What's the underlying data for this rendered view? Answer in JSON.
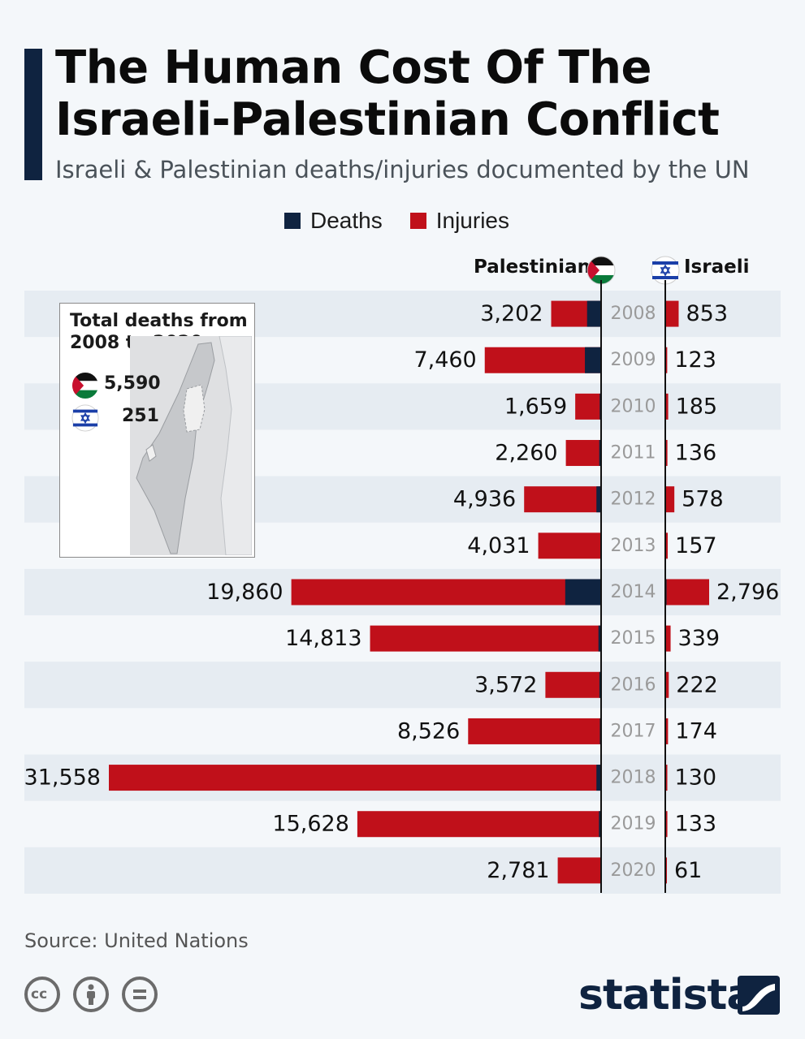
{
  "header": {
    "title_line1": "The Human Cost Of The",
    "title_line2": "Israeli-Palestinian Conflict",
    "subtitle": "Israeli & Palestinian deaths/injuries documented by the UN"
  },
  "legend": {
    "deaths": "Deaths",
    "injuries": "Injuries"
  },
  "columns": {
    "palestinian": "Palestinian",
    "israeli": "Israeli"
  },
  "colors": {
    "deaths": "#0f2340",
    "injuries": "#c0101a",
    "stripe": "#e6ecf2",
    "year_text": "#9a9a9a",
    "navy": "#0f2340"
  },
  "inset": {
    "title_line1": "Total deaths from",
    "title_line2": "2008 to 2020",
    "palestinian_total": "5,590",
    "israeli_total": "251",
    "palestinian_flag_icon": "palestine-flag-icon",
    "israeli_flag_icon": "israel-flag-icon",
    "map_icon": "israel-map-icon"
  },
  "chart_data": {
    "type": "bar",
    "orientation": "horizontal-diverging",
    "categories": [
      "2008",
      "2009",
      "2010",
      "2011",
      "2012",
      "2013",
      "2014",
      "2015",
      "2016",
      "2017",
      "2018",
      "2019",
      "2020"
    ],
    "series": [
      {
        "name": "Palestinian",
        "labels": [
          "3,202",
          "7,460",
          "1,659",
          "2,260",
          "4,936",
          "4,031",
          "19,860",
          "14,813",
          "3,572",
          "8,526",
          "31,558",
          "15,628",
          "2,781"
        ],
        "totals": [
          3202,
          7460,
          1659,
          2260,
          4936,
          4031,
          19860,
          14813,
          3572,
          8526,
          31558,
          15628,
          2781
        ],
        "deaths": [
          900,
          1040,
          90,
          120,
          300,
          50,
          2300,
          170,
          110,
          80,
          300,
          140,
          30
        ]
      },
      {
        "name": "Israeli",
        "labels": [
          "853",
          "123",
          "185",
          "136",
          "578",
          "157",
          "2,796",
          "339",
          "222",
          "174",
          "130",
          "133",
          "61"
        ],
        "totals": [
          853,
          123,
          185,
          136,
          578,
          157,
          2796,
          339,
          222,
          174,
          130,
          133,
          61
        ],
        "deaths": [
          30,
          10,
          10,
          10,
          30,
          5,
          80,
          30,
          15,
          15,
          5,
          10,
          5
        ]
      }
    ]
  },
  "footer": {
    "source": "Source: United Nations",
    "brand": "statista"
  }
}
